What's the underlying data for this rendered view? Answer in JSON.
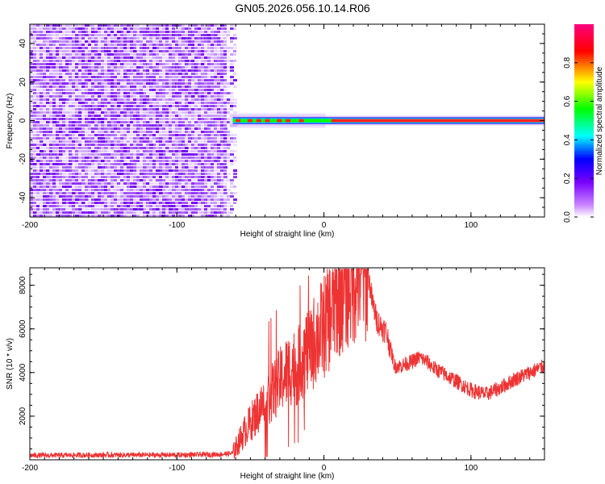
{
  "title": "GN05.2026.056.10.14.R06",
  "chart_data": [
    {
      "type": "heatmap",
      "xlabel": "Height of straight line (km)",
      "ylabel": "Frequency (Hz)",
      "xlim": [
        -200,
        150
      ],
      "ylim": [
        -50,
        50
      ],
      "xticks": [
        -200,
        -100,
        0,
        100
      ],
      "yticks": [
        -40,
        -20,
        0,
        20,
        40
      ],
      "noise_region_x": [
        -200,
        -63
      ],
      "signal_band": {
        "x_start": -62,
        "x_end": 150,
        "frequency": 0
      },
      "colorbar": {
        "label": "Normalized spectral amplitude",
        "range": [
          0,
          1
        ],
        "ticks": [
          "0.0",
          "0.2",
          "0.4",
          "0.6",
          "0.8"
        ],
        "colors": [
          "#ffffff",
          "#cc88ff",
          "#7a00ff",
          "#0000ff",
          "#00ffff",
          "#00ff00",
          "#ffff00",
          "#ff0000",
          "#ff0080"
        ]
      }
    },
    {
      "type": "line",
      "xlabel": "Height of straight line (km)",
      "ylabel": "SNR (10 * v/v)",
      "xlim": [
        -200,
        150
      ],
      "ylim": [
        0,
        8800
      ],
      "xticks": [
        -200,
        -100,
        0,
        100
      ],
      "yticks": [
        2000,
        4000,
        6000,
        8000
      ],
      "color": "#ee3333",
      "series": [
        {
          "x": [
            -200,
            -150,
            -100,
            -70,
            -62,
            -58,
            -54,
            -50,
            -46,
            -42,
            -38,
            -34,
            -30,
            -27,
            -24,
            -21,
            -18,
            -15,
            -12,
            -9,
            -6,
            -3,
            0,
            3,
            6,
            9,
            12,
            15,
            18,
            21,
            24,
            27,
            30,
            33,
            36,
            39,
            42,
            45,
            48,
            52,
            56,
            60,
            65,
            70,
            75,
            80,
            90,
            100,
            110,
            120,
            130,
            140,
            150
          ],
          "y": [
            200,
            220,
            220,
            250,
            300,
            800,
            1300,
            1700,
            2100,
            2500,
            2800,
            3200,
            3600,
            3900,
            4100,
            4300,
            4200,
            4700,
            5000,
            4900,
            5600,
            5800,
            6100,
            6500,
            7000,
            7400,
            7800,
            8100,
            8300,
            8500,
            8600,
            8700,
            8500,
            7200,
            6400,
            6100,
            5900,
            5200,
            4300,
            4300,
            4400,
            4500,
            4700,
            4500,
            4200,
            4000,
            3600,
            3200,
            3000,
            3300,
            3700,
            4000,
            4300
          ]
        }
      ]
    }
  ]
}
